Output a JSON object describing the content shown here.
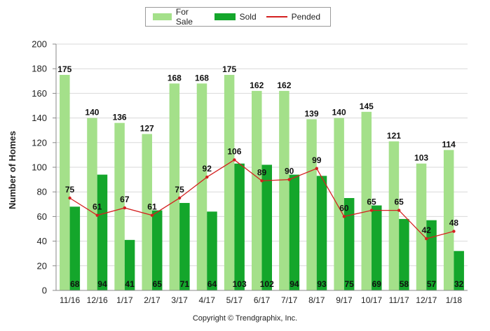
{
  "chart_data": {
    "type": "bar",
    "categories": [
      "11/16",
      "12/16",
      "1/17",
      "2/17",
      "3/17",
      "4/17",
      "5/17",
      "6/17",
      "7/17",
      "8/17",
      "9/17",
      "10/17",
      "11/17",
      "12/17",
      "1/18"
    ],
    "series": [
      {
        "name": "For Sale",
        "type": "bar",
        "color": "#a4e08a",
        "values": [
          175,
          140,
          136,
          127,
          168,
          168,
          175,
          162,
          162,
          139,
          140,
          145,
          121,
          103,
          114
        ]
      },
      {
        "name": "Sold",
        "type": "bar",
        "color": "#14a62b",
        "values": [
          68,
          94,
          41,
          65,
          71,
          64,
          103,
          102,
          94,
          93,
          75,
          69,
          58,
          57,
          32
        ]
      },
      {
        "name": "Pended",
        "type": "line",
        "color": "#d42020",
        "values": [
          75,
          61,
          67,
          61,
          75,
          92,
          106,
          89,
          90,
          99,
          60,
          65,
          65,
          42,
          48
        ]
      }
    ],
    "ylabel": "Number of Homes",
    "xlabel": "",
    "ylim": [
      0,
      200
    ],
    "yticks": [
      0,
      20,
      40,
      60,
      80,
      100,
      120,
      140,
      160,
      180,
      200
    ],
    "grid": true,
    "legend_position": "top-center"
  },
  "legend": {
    "for_sale": "For Sale",
    "sold": "Sold",
    "pended": "Pended"
  },
  "copyright": "Copyright © Trendgraphix, Inc."
}
